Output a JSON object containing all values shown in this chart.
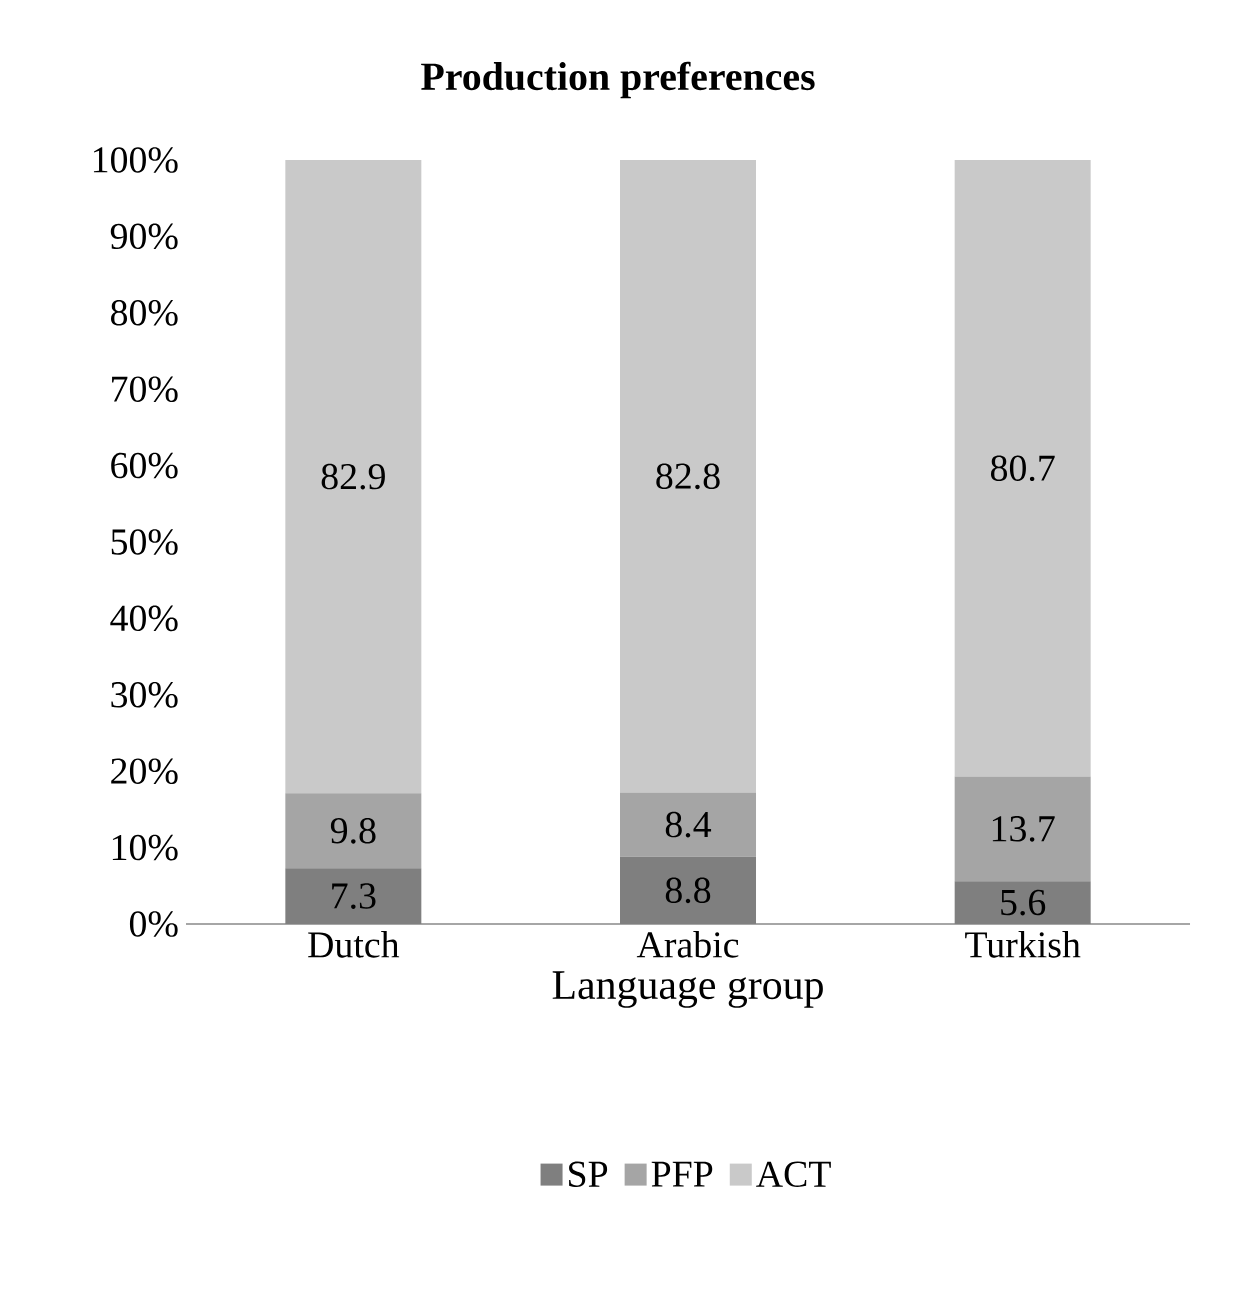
{
  "chart_data": {
    "type": "bar",
    "stacked": true,
    "title": "Production preferences",
    "xlabel": "Language group",
    "categories": [
      "Dutch",
      "Arabic",
      "Turkish"
    ],
    "series": [
      {
        "name": "SP",
        "color": "#7f7f7f",
        "values": [
          7.3,
          8.8,
          5.6
        ]
      },
      {
        "name": "PFP",
        "color": "#a5a5a5",
        "values": [
          9.8,
          8.4,
          13.7
        ]
      },
      {
        "name": "ACT",
        "color": "#c9c9c9",
        "values": [
          82.9,
          82.8,
          80.7
        ]
      }
    ],
    "ylim": [
      0,
      100
    ],
    "yticks": [
      {
        "value": 0,
        "label": "0%"
      },
      {
        "value": 10,
        "label": "10%"
      },
      {
        "value": 20,
        "label": "20%"
      },
      {
        "value": 30,
        "label": "30%"
      },
      {
        "value": 40,
        "label": "40%"
      },
      {
        "value": 50,
        "label": "50%"
      },
      {
        "value": 60,
        "label": "60%"
      },
      {
        "value": 70,
        "label": "70%"
      },
      {
        "value": 80,
        "label": "80%"
      },
      {
        "value": 90,
        "label": "90%"
      },
      {
        "value": 100,
        "label": "100%"
      }
    ],
    "data_labels": true,
    "grid": false,
    "legend": "bottom"
  }
}
